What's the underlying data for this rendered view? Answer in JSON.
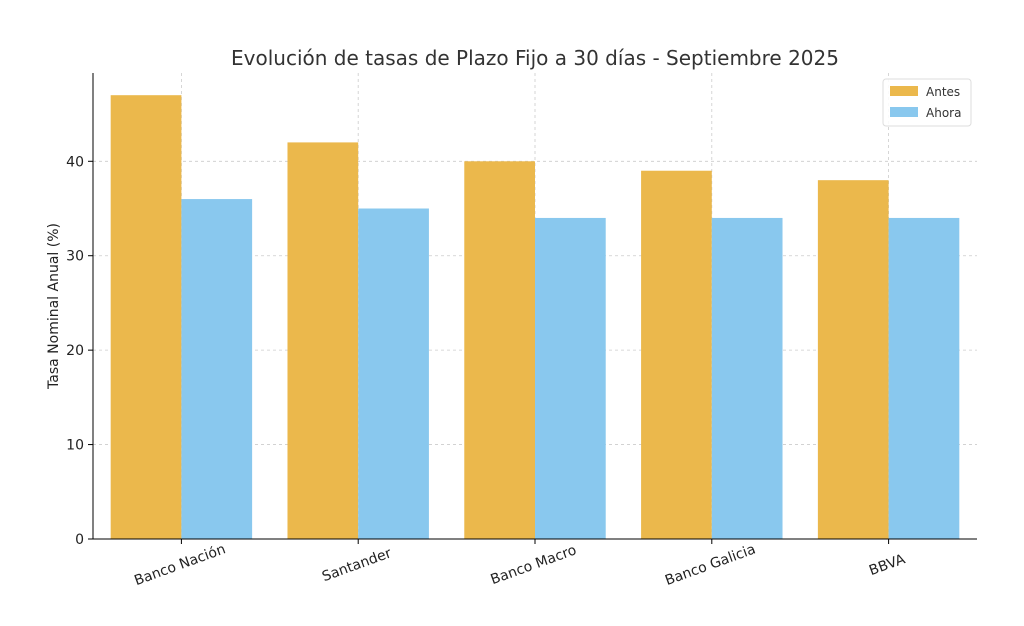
{
  "chart_data": {
    "type": "bar",
    "title": "Evolución de tasas de Plazo Fijo a 30 días - Septiembre 2025",
    "xlabel": "",
    "ylabel": "Tasa Nominal Anual (%)",
    "categories": [
      "Banco Nación",
      "Santander",
      "Banco Macro",
      "Banco Galicia",
      "BBVA"
    ],
    "series": [
      {
        "name": "Antes",
        "values": [
          47,
          42,
          40,
          39,
          38
        ],
        "color": "#EBB84C"
      },
      {
        "name": "Ahora",
        "values": [
          36,
          35,
          34,
          34,
          34
        ],
        "color": "#89C8EE"
      }
    ],
    "ylim": [
      0,
      49.35
    ],
    "yticks": [
      0,
      10,
      20,
      30,
      40
    ],
    "grid": true,
    "legend_position": "top-right"
  }
}
